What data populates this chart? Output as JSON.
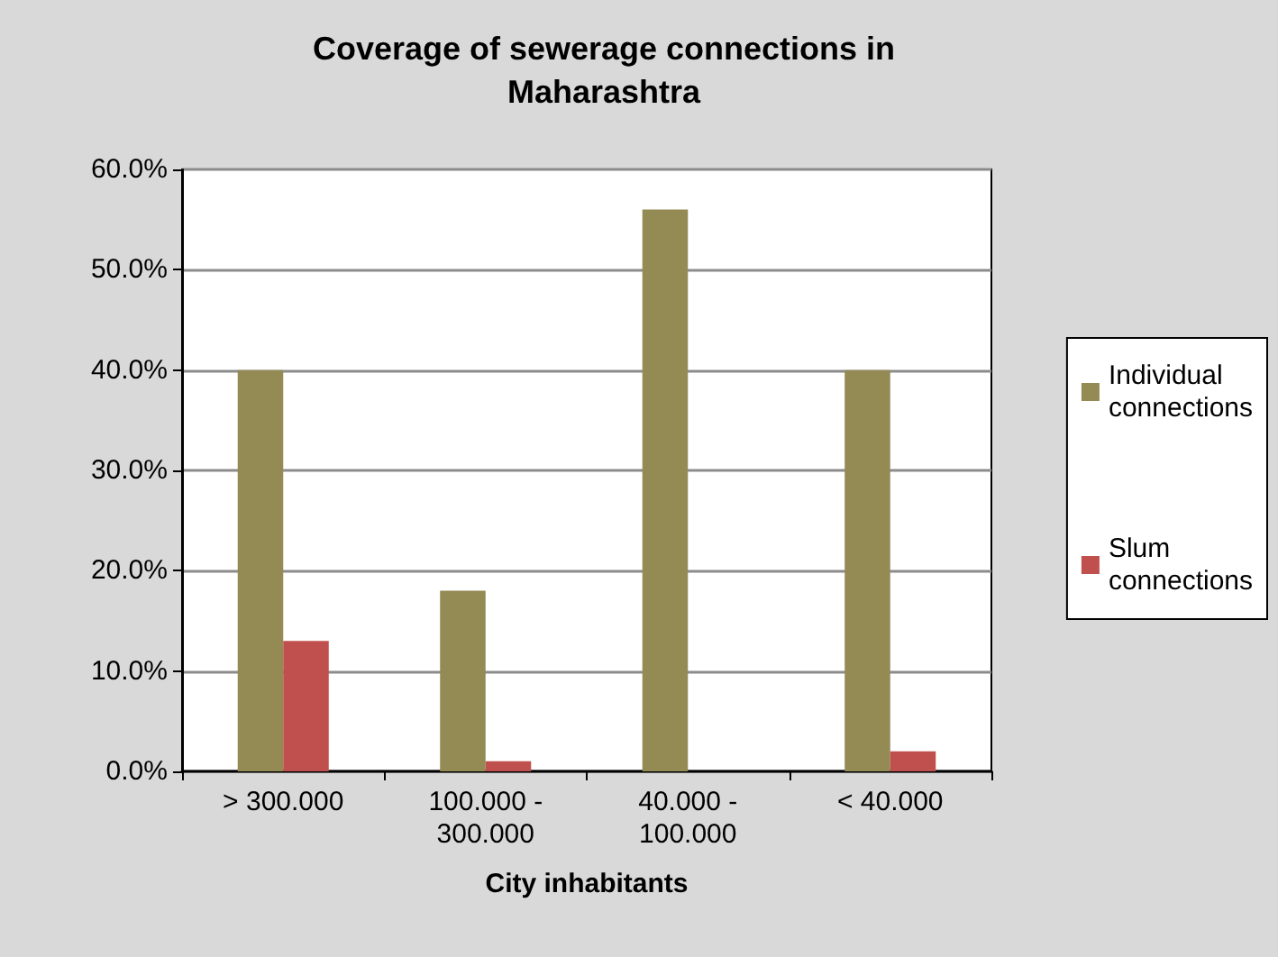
{
  "chart_data": {
    "type": "bar",
    "title": "Coverage of sewerage connections in\nMaharashtra",
    "xlabel": "City inhabitants",
    "categories": [
      "> 300.000",
      "100.000 -\n300.000",
      "40.000 -\n100.000",
      "< 40.000"
    ],
    "series": [
      {
        "name": "Individual\nconnections",
        "color": "#948a54",
        "values": [
          40,
          18,
          56,
          40
        ]
      },
      {
        "name": "Slum\nconnections",
        "color": "#c0504d",
        "values": [
          13,
          1,
          0,
          2
        ]
      }
    ],
    "ylim": [
      0,
      60
    ],
    "yticks": [
      {
        "value": 0,
        "label": "0.0%"
      },
      {
        "value": 10,
        "label": "10.0%"
      },
      {
        "value": 20,
        "label": "20.0%"
      },
      {
        "value": 30,
        "label": "30.0%"
      },
      {
        "value": 40,
        "label": "40.0%"
      },
      {
        "value": 50,
        "label": "50.0%"
      },
      {
        "value": 60,
        "label": "60.0%"
      }
    ],
    "grid": "y",
    "legend": "right"
  }
}
